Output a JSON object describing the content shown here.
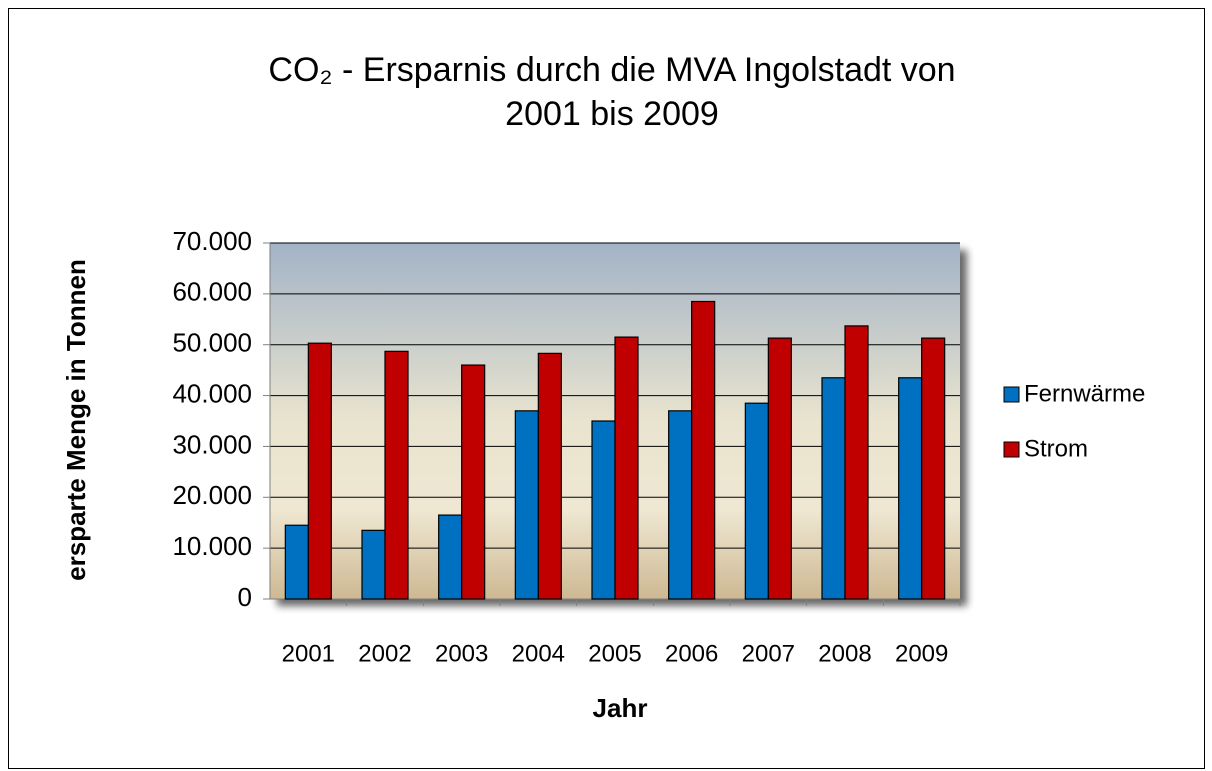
{
  "chart_data": {
    "type": "bar",
    "title": [
      "CO₂ - Ersparnis durch die MVA Ingolstadt von",
      "2001 bis 2009"
    ],
    "x_label": "Jahr",
    "y_label": "ersparte Menge in Tonnen",
    "categories": [
      "2001",
      "2002",
      "2003",
      "2004",
      "2005",
      "2006",
      "2007",
      "2008",
      "2009"
    ],
    "series": [
      {
        "name": "Fernwärme",
        "color": "#0070c0",
        "values": [
          14500,
          13500,
          16500,
          37000,
          35000,
          37000,
          38500,
          43500,
          43500
        ]
      },
      {
        "name": "Strom",
        "color": "#c00000",
        "values": [
          50300,
          48700,
          46000,
          48300,
          51500,
          58500,
          51300,
          53700,
          51300
        ]
      }
    ],
    "ylim": [
      0,
      70000
    ],
    "yticks": [
      0,
      {
        "value": 10000,
        "label": "10.000"
      },
      {
        "value": 20000,
        "label": "20.000"
      },
      {
        "value": 30000,
        "label": "30.000"
      },
      {
        "value": 40000,
        "label": "40.000"
      },
      {
        "value": 50000,
        "label": "50.000"
      },
      {
        "value": 60000,
        "label": "60.000"
      },
      {
        "value": 70000,
        "label": "70.000"
      }
    ],
    "grid": true,
    "legend": "right"
  }
}
